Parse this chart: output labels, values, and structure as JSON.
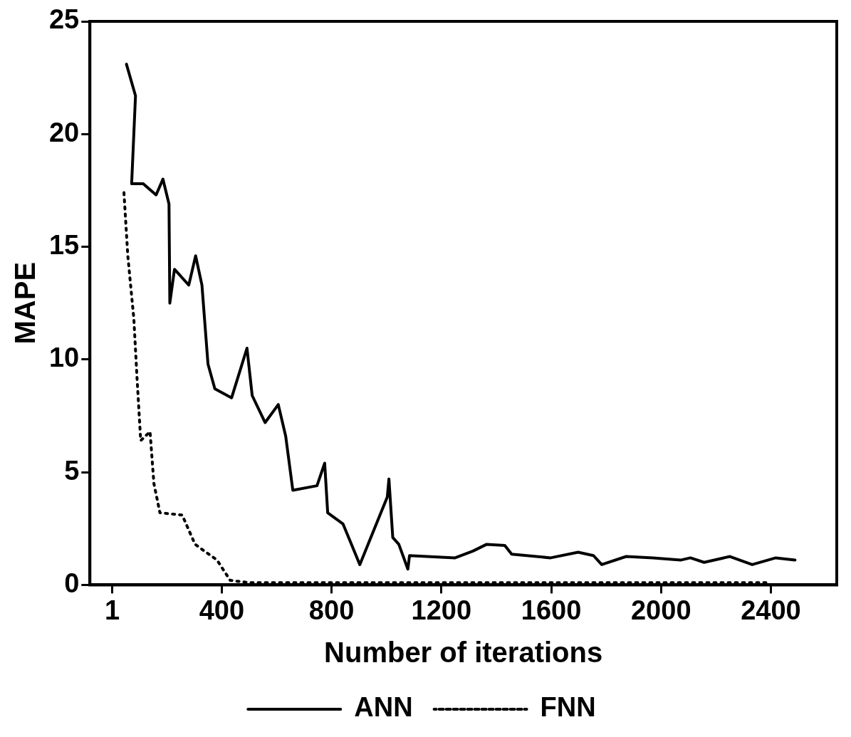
{
  "chart_data": {
    "type": "line",
    "xlabel": "Number of iterations",
    "ylabel": "MAPE",
    "xlim": [
      -80,
      2640
    ],
    "ylim": [
      0,
      25
    ],
    "xticks": [
      1,
      400,
      800,
      1200,
      1600,
      2000,
      2400
    ],
    "yticks": [
      0,
      5,
      10,
      15,
      20,
      25
    ],
    "grid": false,
    "legend": "bottom",
    "marker": "none",
    "series": [
      {
        "name": "ANN",
        "color": "#000000",
        "line_style": "solid",
        "x": [
          53,
          86,
          72,
          114,
          161,
          186,
          208,
          211,
          228,
          280,
          305,
          328,
          350,
          375,
          436,
          492,
          511,
          558,
          606,
          633,
          659,
          747,
          775,
          786,
          842,
          903,
          1003,
          1009,
          1023,
          1045,
          1078,
          1084,
          1250,
          1315,
          1365,
          1431,
          1456,
          1598,
          1698,
          1754,
          1784,
          1873,
          1971,
          2071,
          2107,
          2157,
          2251,
          2332,
          2418,
          2488
        ],
        "values": [
          23.1,
          21.7,
          17.8,
          17.8,
          17.3,
          18.0,
          16.9,
          12.5,
          14.0,
          13.3,
          14.6,
          13.3,
          9.8,
          8.7,
          8.3,
          10.5,
          8.4,
          7.2,
          8.0,
          6.6,
          4.2,
          4.4,
          5.4,
          3.2,
          2.7,
          0.9,
          3.9,
          4.7,
          2.1,
          1.8,
          0.7,
          1.3,
          1.2,
          1.5,
          1.8,
          1.75,
          1.36,
          1.2,
          1.45,
          1.3,
          0.9,
          1.26,
          1.2,
          1.1,
          1.2,
          1.0,
          1.26,
          0.9,
          1.2,
          1.1
        ]
      },
      {
        "name": "FNN",
        "color": "#000000",
        "line_style": "dotted",
        "x": [
          44,
          58,
          80,
          91,
          105,
          139,
          153,
          175,
          256,
          303,
          383,
          431,
          500,
          1000,
          1500,
          2000,
          2400
        ],
        "values": [
          17.4,
          14.6,
          11.8,
          9.3,
          6.4,
          6.8,
          4.5,
          3.2,
          3.1,
          1.8,
          1.1,
          0.2,
          0.1,
          0.1,
          0.1,
          0.1,
          0.1
        ]
      }
    ]
  }
}
